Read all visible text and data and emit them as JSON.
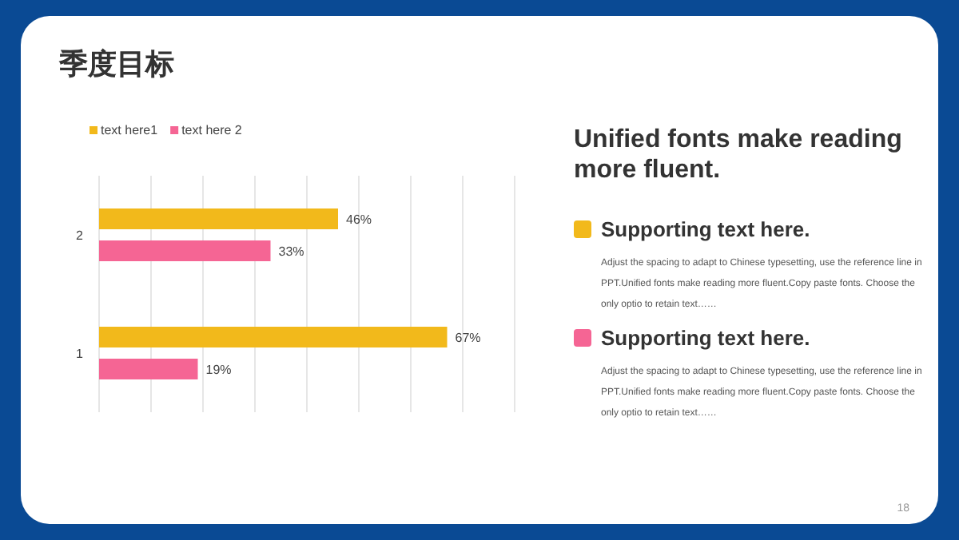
{
  "chart_data": {
    "type": "bar",
    "orientation": "horizontal",
    "title": "季度目标",
    "categories": [
      "2",
      "1"
    ],
    "series": [
      {
        "name": "text here1",
        "color": "#f2b91b",
        "values": [
          46,
          67
        ],
        "value_labels": [
          "46%",
          "67%"
        ]
      },
      {
        "name": "text here 2",
        "color": "#f56594",
        "values": [
          33,
          19
        ],
        "value_labels": [
          "33%",
          "19%"
        ]
      }
    ],
    "xlim": [
      0,
      80
    ],
    "xticks": [
      {
        "value": 0,
        "label": null
      },
      {
        "value": 10,
        "label": null
      },
      {
        "value": 20,
        "label": null
      },
      {
        "value": 30,
        "label": null
      },
      {
        "value": 40,
        "label": null
      },
      {
        "value": 50,
        "label": null
      },
      {
        "value": 60,
        "label": null
      },
      {
        "value": 70,
        "label": null
      },
      {
        "value": 80,
        "label": null
      }
    ],
    "grid": "x",
    "legend": "top left",
    "annotations": [
      "Unified fonts make reading more fluent.",
      "Supporting text here.",
      "Adjust the spacing to adapt to Chinese typesetting, use the reference line in PPT.Unified fonts make reading more fluent.Copy paste fonts. Choose the only optio to retain text……",
      "Supporting text here.",
      "Adjust the spacing to adapt to Chinese typesetting, use the reference line in PPT.Unified fonts make reading more fluent.Copy paste fonts. Choose the only optio to retain text……",
      "18"
    ]
  }
}
